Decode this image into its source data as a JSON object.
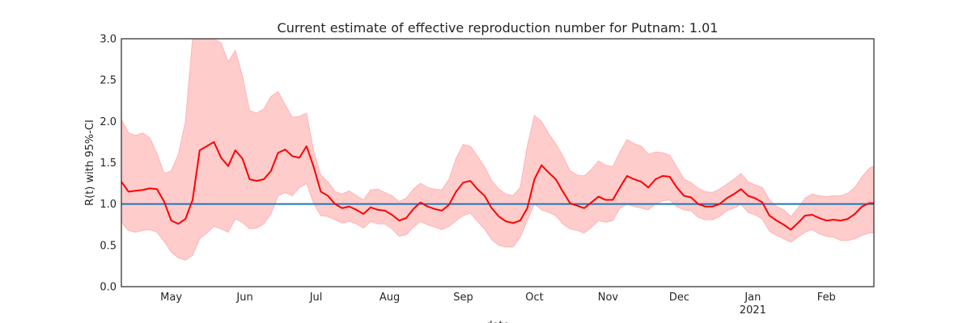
{
  "chart_data": {
    "type": "line",
    "title": "Current estimate of effective reproduction number for Putnam: 1.01",
    "xlabel": "date",
    "ylabel": "R(t) with 95%-CI",
    "ylim": [
      0,
      3
    ],
    "xlim": [
      "2020-04-10",
      "2021-02-21"
    ],
    "yticks": [
      0.0,
      0.5,
      1.0,
      1.5,
      2.0,
      2.5,
      3.0
    ],
    "ytick_labels": [
      "0.0",
      "0.5",
      "1.0",
      "1.5",
      "2.0",
      "2.5",
      "3.0"
    ],
    "xticks": [
      {
        "date": "2020-05-01",
        "label": "May",
        "sublabel": ""
      },
      {
        "date": "2020-06-01",
        "label": "Jun",
        "sublabel": ""
      },
      {
        "date": "2020-07-01",
        "label": "Jul",
        "sublabel": ""
      },
      {
        "date": "2020-08-01",
        "label": "Aug",
        "sublabel": ""
      },
      {
        "date": "2020-09-01",
        "label": "Sep",
        "sublabel": ""
      },
      {
        "date": "2020-10-01",
        "label": "Oct",
        "sublabel": ""
      },
      {
        "date": "2020-11-01",
        "label": "Nov",
        "sublabel": ""
      },
      {
        "date": "2020-12-01",
        "label": "Dec",
        "sublabel": ""
      },
      {
        "date": "2021-01-01",
        "label": "Jan",
        "sublabel": "2021"
      },
      {
        "date": "2021-02-01",
        "label": "Feb",
        "sublabel": ""
      }
    ],
    "reference_line": {
      "y": 1.0,
      "color": "#1f77b4"
    },
    "grid": false,
    "colors": {
      "line": "#ff0000",
      "band": "#ffcccc",
      "band_edge": "#ffb3b3",
      "axes": "#262626"
    },
    "series": [
      {
        "x": [
          "2020-04-10",
          "2020-04-13",
          "2020-04-16",
          "2020-04-19",
          "2020-04-22",
          "2020-04-25",
          "2020-04-28",
          "2020-05-01",
          "2020-05-04",
          "2020-05-07",
          "2020-05-10",
          "2020-05-13",
          "2020-05-16",
          "2020-05-19",
          "2020-05-22",
          "2020-05-25",
          "2020-05-28",
          "2020-05-31",
          "2020-06-03",
          "2020-06-06",
          "2020-06-09",
          "2020-06-12",
          "2020-06-15",
          "2020-06-18",
          "2020-06-21",
          "2020-06-24",
          "2020-06-27",
          "2020-06-30",
          "2020-07-03",
          "2020-07-06",
          "2020-07-09",
          "2020-07-12",
          "2020-07-15",
          "2020-07-18",
          "2020-07-21",
          "2020-07-24",
          "2020-07-27",
          "2020-07-30",
          "2020-08-02",
          "2020-08-05",
          "2020-08-08",
          "2020-08-11",
          "2020-08-14",
          "2020-08-17",
          "2020-08-20",
          "2020-08-23",
          "2020-08-26",
          "2020-08-29",
          "2020-09-01",
          "2020-09-04",
          "2020-09-07",
          "2020-09-10",
          "2020-09-13",
          "2020-09-16",
          "2020-09-19",
          "2020-09-22",
          "2020-09-25",
          "2020-09-28",
          "2020-10-01",
          "2020-10-04",
          "2020-10-07",
          "2020-10-10",
          "2020-10-13",
          "2020-10-16",
          "2020-10-19",
          "2020-10-22",
          "2020-10-25",
          "2020-10-28",
          "2020-10-31",
          "2020-11-03",
          "2020-11-06",
          "2020-11-09",
          "2020-11-12",
          "2020-11-15",
          "2020-11-18",
          "2020-11-21",
          "2020-11-24",
          "2020-11-27",
          "2020-11-30",
          "2020-12-03",
          "2020-12-06",
          "2020-12-09",
          "2020-12-12",
          "2020-12-15",
          "2020-12-18",
          "2020-12-21",
          "2020-12-24",
          "2020-12-27",
          "2020-12-30",
          "2021-01-02",
          "2021-01-05",
          "2021-01-08",
          "2021-01-11",
          "2021-01-14",
          "2021-01-17",
          "2021-01-20",
          "2021-01-23",
          "2021-01-26",
          "2021-01-29",
          "2021-02-01",
          "2021-02-04",
          "2021-02-07",
          "2021-02-10",
          "2021-02-13",
          "2021-02-16",
          "2021-02-19",
          "2021-02-21"
        ],
        "values": [
          1.27,
          1.15,
          1.16,
          1.17,
          1.19,
          1.18,
          1.03,
          0.8,
          0.76,
          0.82,
          1.05,
          1.65,
          1.7,
          1.75,
          1.56,
          1.46,
          1.65,
          1.55,
          1.3,
          1.28,
          1.3,
          1.4,
          1.62,
          1.66,
          1.58,
          1.56,
          1.7,
          1.45,
          1.15,
          1.1,
          1.0,
          0.95,
          0.97,
          0.93,
          0.88,
          0.96,
          0.93,
          0.92,
          0.87,
          0.8,
          0.83,
          0.94,
          1.02,
          0.97,
          0.94,
          0.92,
          0.99,
          1.15,
          1.26,
          1.28,
          1.18,
          1.1,
          0.95,
          0.85,
          0.79,
          0.77,
          0.8,
          0.95,
          1.3,
          1.47,
          1.38,
          1.3,
          1.15,
          1.01,
          0.98,
          0.95,
          1.02,
          1.09,
          1.05,
          1.05,
          1.2,
          1.34,
          1.3,
          1.27,
          1.2,
          1.3,
          1.34,
          1.33,
          1.2,
          1.1,
          1.08,
          1.0,
          0.97,
          0.97,
          1.0,
          1.07,
          1.12,
          1.18,
          1.1,
          1.07,
          1.02,
          0.86,
          0.8,
          0.75,
          0.69,
          0.77,
          0.86,
          0.87,
          0.83,
          0.8,
          0.81,
          0.8,
          0.82,
          0.88,
          0.97,
          1.01,
          1.01
        ],
        "lower": [
          0.78,
          0.68,
          0.66,
          0.68,
          0.69,
          0.66,
          0.55,
          0.42,
          0.35,
          0.32,
          0.38,
          0.58,
          0.65,
          0.73,
          0.7,
          0.66,
          0.82,
          0.78,
          0.7,
          0.71,
          0.76,
          0.88,
          1.1,
          1.14,
          1.1,
          1.2,
          1.25,
          1.01,
          0.86,
          0.85,
          0.81,
          0.77,
          0.79,
          0.76,
          0.71,
          0.79,
          0.76,
          0.76,
          0.7,
          0.61,
          0.63,
          0.72,
          0.79,
          0.75,
          0.72,
          0.69,
          0.73,
          0.8,
          0.86,
          0.89,
          0.79,
          0.7,
          0.57,
          0.5,
          0.48,
          0.48,
          0.6,
          0.8,
          1.0,
          0.93,
          0.9,
          0.86,
          0.76,
          0.7,
          0.68,
          0.65,
          0.72,
          0.8,
          0.78,
          0.8,
          0.95,
          1.0,
          0.97,
          0.95,
          0.93,
          1.0,
          1.04,
          1.05,
          0.97,
          0.93,
          0.92,
          0.84,
          0.81,
          0.81,
          0.85,
          0.92,
          0.95,
          1.0,
          0.9,
          0.87,
          0.82,
          0.67,
          0.62,
          0.58,
          0.54,
          0.6,
          0.66,
          0.69,
          0.64,
          0.61,
          0.6,
          0.56,
          0.56,
          0.58,
          0.62,
          0.65,
          0.65
        ],
        "upper": [
          2.02,
          1.86,
          1.83,
          1.86,
          1.8,
          1.61,
          1.37,
          1.4,
          1.6,
          2.0,
          3.0,
          3.3,
          3.1,
          3.0,
          2.95,
          2.72,
          2.86,
          2.55,
          2.13,
          2.1,
          2.15,
          2.3,
          2.36,
          2.2,
          2.05,
          2.06,
          2.1,
          1.64,
          1.35,
          1.27,
          1.15,
          1.12,
          1.16,
          1.1,
          1.05,
          1.17,
          1.18,
          1.14,
          1.1,
          1.03,
          1.07,
          1.18,
          1.25,
          1.2,
          1.18,
          1.17,
          1.3,
          1.55,
          1.72,
          1.7,
          1.58,
          1.45,
          1.28,
          1.18,
          1.12,
          1.1,
          1.2,
          1.7,
          2.07,
          2.0,
          1.85,
          1.73,
          1.58,
          1.4,
          1.35,
          1.34,
          1.42,
          1.52,
          1.47,
          1.45,
          1.63,
          1.78,
          1.73,
          1.7,
          1.6,
          1.63,
          1.62,
          1.59,
          1.45,
          1.3,
          1.26,
          1.19,
          1.15,
          1.14,
          1.18,
          1.24,
          1.3,
          1.37,
          1.27,
          1.23,
          1.2,
          1.05,
          0.97,
          0.93,
          0.85,
          0.95,
          1.07,
          1.12,
          1.1,
          1.09,
          1.1,
          1.1,
          1.13,
          1.2,
          1.33,
          1.43,
          1.46
        ]
      }
    ]
  }
}
